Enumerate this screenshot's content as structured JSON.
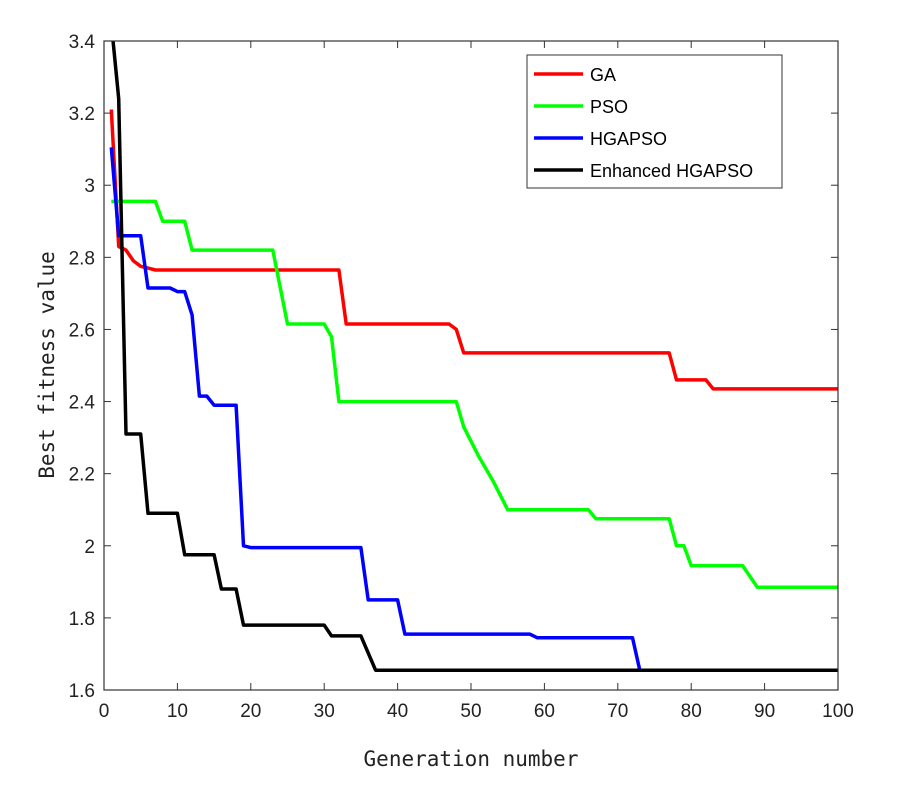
{
  "chart_data": {
    "type": "line",
    "title": "",
    "xlabel": "Generation number",
    "ylabel": "Best fitness value",
    "xlim": [
      0,
      100
    ],
    "ylim": [
      1.6,
      3.4
    ],
    "xticks": [
      0,
      10,
      20,
      30,
      40,
      50,
      60,
      70,
      80,
      90,
      100
    ],
    "yticks": [
      1.6,
      1.8,
      2,
      2.2,
      2.4,
      2.6,
      2.8,
      3,
      3.2,
      3.4
    ],
    "grid": false,
    "legend_position": "top-right",
    "series": [
      {
        "name": "GA",
        "color": "#ff0000",
        "x": [
          1,
          2,
          3,
          4,
          5,
          6,
          7,
          32,
          33,
          47,
          48,
          49,
          77,
          78,
          82,
          83,
          100
        ],
        "y": [
          3.21,
          2.83,
          2.82,
          2.79,
          2.775,
          2.77,
          2.765,
          2.765,
          2.615,
          2.615,
          2.6,
          2.535,
          2.535,
          2.46,
          2.46,
          2.435,
          2.435
        ]
      },
      {
        "name": "PSO",
        "color": "#00ff00",
        "x": [
          1,
          7,
          8,
          11,
          12,
          23,
          25,
          30,
          31,
          32,
          48,
          49,
          51,
          53,
          55,
          66,
          67,
          77,
          78,
          79,
          80,
          87,
          89,
          100
        ],
        "y": [
          2.955,
          2.955,
          2.9,
          2.9,
          2.82,
          2.82,
          2.615,
          2.615,
          2.58,
          2.4,
          2.4,
          2.33,
          2.25,
          2.18,
          2.1,
          2.1,
          2.075,
          2.075,
          2.0,
          2.0,
          1.945,
          1.945,
          1.885,
          1.885
        ]
      },
      {
        "name": "HGAPSO",
        "color": "#0000ff",
        "x": [
          1,
          2,
          5,
          6,
          9,
          10,
          11,
          12,
          13,
          14,
          15,
          18,
          19,
          20,
          35,
          36,
          40,
          41,
          58,
          59,
          72,
          73,
          100
        ],
        "y": [
          3.105,
          2.86,
          2.86,
          2.715,
          2.715,
          2.705,
          2.705,
          2.64,
          2.415,
          2.415,
          2.39,
          2.39,
          2.0,
          1.995,
          1.995,
          1.85,
          1.85,
          1.755,
          1.755,
          1.745,
          1.745,
          1.655,
          1.655
        ]
      },
      {
        "name": "Enhanced HGAPSO",
        "color": "#000000",
        "x": [
          1,
          2,
          3,
          5,
          6,
          10,
          11,
          15,
          16,
          18,
          19,
          30,
          31,
          35,
          37,
          100
        ],
        "y": [
          3.45,
          3.24,
          2.31,
          2.31,
          2.09,
          2.09,
          1.975,
          1.975,
          1.88,
          1.88,
          1.78,
          1.78,
          1.75,
          1.75,
          1.655,
          1.655
        ]
      }
    ]
  }
}
